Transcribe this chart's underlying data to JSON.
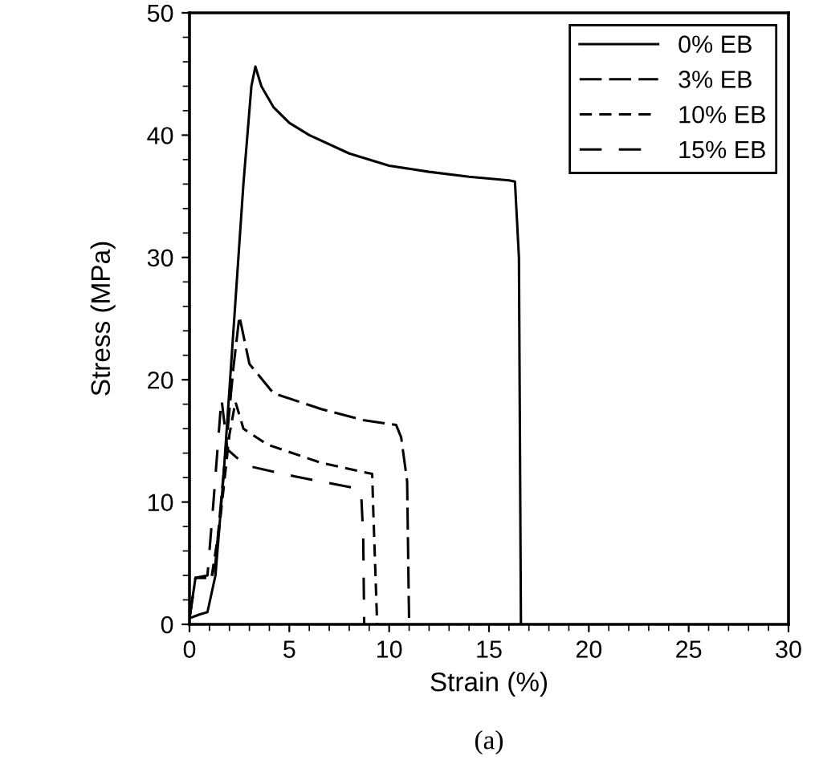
{
  "chart_data": {
    "type": "line",
    "xlabel": "Strain (%)",
    "ylabel": "Stress (MPa)",
    "xlim": [
      0,
      30
    ],
    "ylim": [
      0,
      50
    ],
    "xticks": [
      0,
      5,
      10,
      15,
      20,
      25,
      30
    ],
    "yticks": [
      0,
      10,
      20,
      30,
      40,
      50
    ],
    "grid": false,
    "legend": "top right",
    "marker": "none",
    "annotations": [
      "(a)"
    ],
    "series": [
      {
        "name": "0% EB",
        "color": "#000000",
        "line_style": "solid",
        "x": [
          0,
          0.5,
          0.9,
          1.3,
          1.7,
          2.2,
          2.7,
          3.1,
          3.3,
          3.6,
          4.2,
          5,
          6,
          8,
          10,
          12,
          14,
          16,
          16.3,
          16.5,
          16.6
        ],
        "values": [
          0.5,
          0.8,
          1,
          4,
          12,
          24,
          36,
          44,
          45.6,
          44,
          42.3,
          41,
          40,
          38.5,
          37.5,
          37,
          36.6,
          36.3,
          36.2,
          30,
          0
        ]
      },
      {
        "name": "3% EB",
        "color": "#000000",
        "line_style": "dashed",
        "x": [
          0,
          0.3,
          1.1,
          1.3,
          1.8,
          2.2,
          2.5,
          3.0,
          4.2,
          6.6,
          8.7,
          10.35,
          10.6,
          10.9,
          11.0
        ],
        "values": [
          0.5,
          3.8,
          3.8,
          5,
          14,
          21,
          25.2,
          21.3,
          18.9,
          17.6,
          16.7,
          16.3,
          15.3,
          11.7,
          0
        ]
      },
      {
        "name": "10% EB",
        "color": "#000000",
        "line_style": "dashed",
        "x": [
          0,
          0.3,
          1.1,
          1.5,
          2.0,
          2.3,
          2.7,
          3.9,
          6.6,
          9.15,
          9.2,
          9.4
        ],
        "values": [
          0.5,
          3.8,
          3.8,
          8,
          15.5,
          18.2,
          16,
          14.7,
          13.2,
          12.3,
          9.5,
          0
        ]
      },
      {
        "name": "15% EB",
        "color": "#000000",
        "line_style": "dashed",
        "x": [
          0,
          0.3,
          0.9,
          1.2,
          1.6,
          1.9,
          2.8,
          5.25,
          8.1,
          8.6,
          8.7,
          8.75
        ],
        "values": [
          0.5,
          3.8,
          4,
          10,
          18.5,
          14.3,
          13,
          12.1,
          11.2,
          10.6,
          7.3,
          0
        ]
      }
    ]
  }
}
